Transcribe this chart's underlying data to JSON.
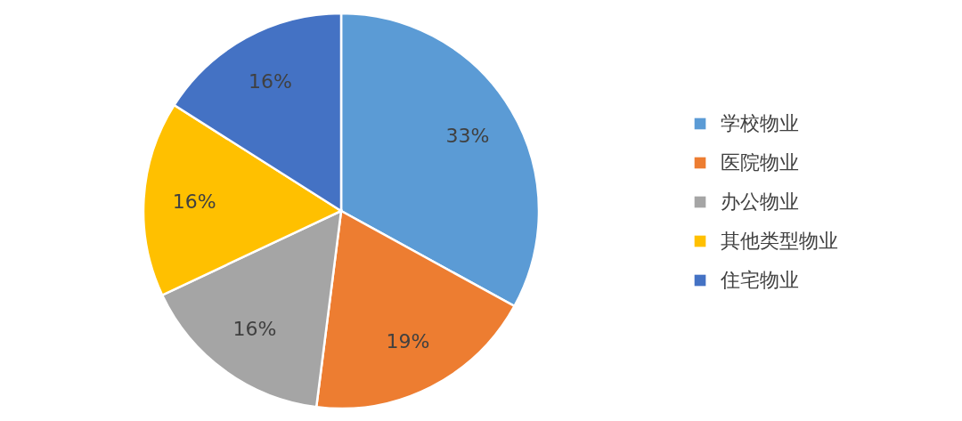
{
  "chart_data": {
    "type": "pie",
    "categories": [
      "学校物业",
      "医院物业",
      "办公物业",
      "其他类型物业",
      "住宅物业"
    ],
    "values": [
      33,
      19,
      16,
      16,
      16
    ],
    "colors": [
      "#5b9bd5",
      "#ed7d31",
      "#a5a5a5",
      "#ffc000",
      "#4472c4"
    ],
    "value_labels": [
      "33%",
      "19%",
      "16%",
      "16%",
      "16%"
    ],
    "legend": "right"
  }
}
